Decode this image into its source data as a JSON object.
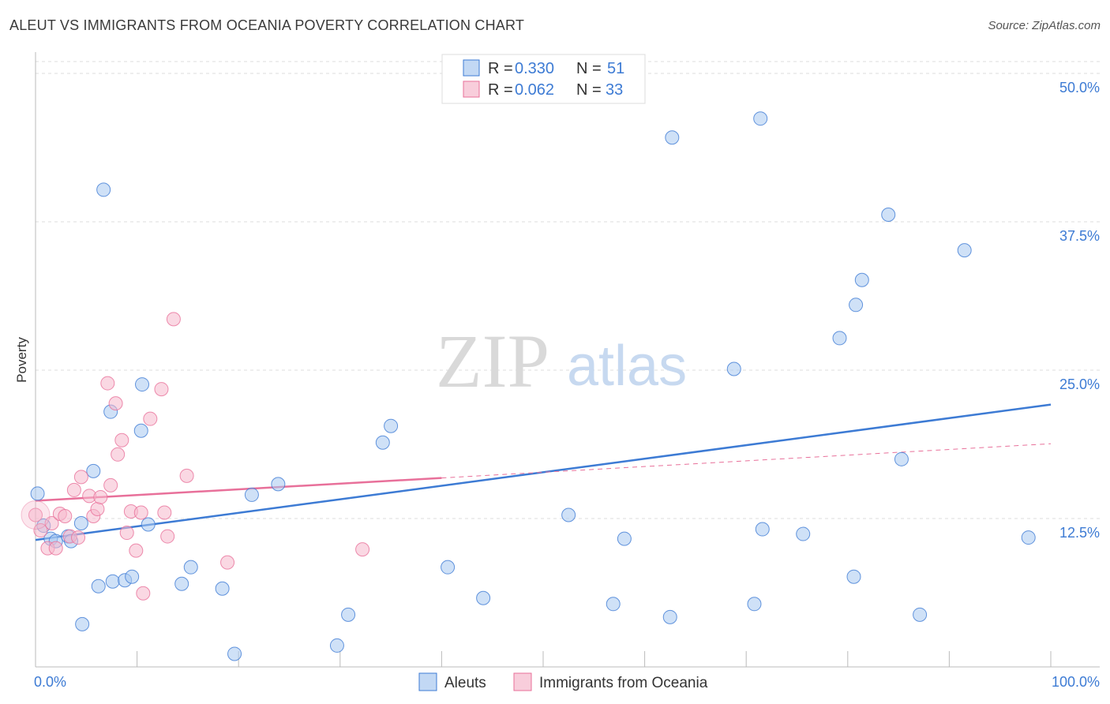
{
  "header": {
    "title": "ALEUT VS IMMIGRANTS FROM OCEANIA POVERTY CORRELATION CHART",
    "source": "Source: ZipAtlas.com"
  },
  "watermark": {
    "zip": "ZIP",
    "atlas": "atlas"
  },
  "colors": {
    "blue": "#3d7bd4",
    "blue_fill": "#a8c8f0",
    "pink": "#e8709a",
    "pink_fill": "#f5b8cc",
    "grid": "#dddddd"
  },
  "legend": {
    "rows": [
      {
        "r_label": "R =",
        "r_value": "0.330",
        "n_label": "N =",
        "n_value": "51"
      },
      {
        "r_label": "R =",
        "r_value": "0.062",
        "n_label": "N =",
        "n_value": "33"
      }
    ]
  },
  "chart_data": {
    "type": "scatter",
    "title": "ALEUT VS IMMIGRANTS FROM OCEANIA POVERTY CORRELATION CHART",
    "xlabel": "",
    "ylabel": "Poverty",
    "xlim": [
      0,
      100
    ],
    "ylim": [
      0,
      51
    ],
    "x_tick_labels": [
      "0.0%",
      "100.0%"
    ],
    "y_ticks": [
      12.5,
      25.0,
      37.5,
      50.0
    ],
    "y_tick_labels": [
      "12.5%",
      "25.0%",
      "37.5%",
      "50.0%"
    ],
    "series": [
      {
        "name": "Aleuts",
        "r": 0.33,
        "n": 51,
        "trend": {
          "x": [
            0,
            100
          ],
          "y": [
            10.7,
            22.1
          ],
          "dashed_from": null
        },
        "points": [
          [
            0.2,
            14.6
          ],
          [
            0.8,
            11.9
          ],
          [
            1.5,
            10.8
          ],
          [
            2.0,
            10.6
          ],
          [
            3.2,
            11.0
          ],
          [
            3.5,
            10.6
          ],
          [
            4.5,
            12.1
          ],
          [
            5.7,
            16.5
          ],
          [
            6.7,
            40.2
          ],
          [
            7.4,
            21.5
          ],
          [
            10.4,
            19.9
          ],
          [
            10.5,
            23.8
          ],
          [
            7.6,
            7.2
          ],
          [
            8.8,
            7.3
          ],
          [
            9.5,
            7.6
          ],
          [
            11.1,
            12.0
          ],
          [
            6.2,
            6.8
          ],
          [
            4.6,
            3.6
          ],
          [
            14.4,
            7.0
          ],
          [
            15.3,
            8.4
          ],
          [
            18.4,
            6.6
          ],
          [
            19.6,
            1.1
          ],
          [
            21.3,
            14.5
          ],
          [
            23.9,
            15.4
          ],
          [
            29.7,
            1.8
          ],
          [
            30.8,
            4.4
          ],
          [
            34.2,
            18.9
          ],
          [
            35.0,
            20.3
          ],
          [
            40.6,
            8.4
          ],
          [
            44.1,
            5.8
          ],
          [
            52.5,
            12.8
          ],
          [
            56.9,
            5.3
          ],
          [
            58.0,
            10.8
          ],
          [
            62.5,
            4.2
          ],
          [
            62.7,
            44.6
          ],
          [
            68.8,
            25.1
          ],
          [
            70.8,
            5.3
          ],
          [
            71.4,
            46.2
          ],
          [
            71.6,
            11.6
          ],
          [
            75.6,
            11.2
          ],
          [
            79.2,
            27.7
          ],
          [
            80.6,
            7.6
          ],
          [
            80.8,
            30.5
          ],
          [
            81.4,
            32.6
          ],
          [
            84.0,
            38.1
          ],
          [
            85.3,
            17.5
          ],
          [
            87.1,
            4.4
          ],
          [
            91.5,
            35.1
          ],
          [
            97.8,
            10.9
          ]
        ]
      },
      {
        "name": "Immigrants from Oceania",
        "r": 0.062,
        "n": 33,
        "trend": {
          "x": [
            0,
            100
          ],
          "y": [
            14.0,
            18.8
          ],
          "dashed_from": 40
        },
        "points": [
          [
            0.0,
            12.8
          ],
          [
            0.5,
            11.5
          ],
          [
            1.2,
            10.0
          ],
          [
            1.6,
            12.1
          ],
          [
            2.0,
            10.0
          ],
          [
            2.4,
            12.9
          ],
          [
            2.9,
            12.7
          ],
          [
            3.4,
            11.0
          ],
          [
            3.8,
            14.9
          ],
          [
            4.2,
            10.9
          ],
          [
            4.5,
            16.0
          ],
          [
            5.3,
            14.4
          ],
          [
            5.7,
            12.7
          ],
          [
            6.1,
            13.3
          ],
          [
            6.4,
            14.3
          ],
          [
            7.1,
            23.9
          ],
          [
            7.4,
            15.3
          ],
          [
            7.9,
            22.2
          ],
          [
            8.1,
            17.9
          ],
          [
            8.5,
            19.1
          ],
          [
            9.0,
            11.3
          ],
          [
            9.4,
            13.1
          ],
          [
            9.9,
            9.8
          ],
          [
            10.4,
            13.0
          ],
          [
            10.6,
            6.2
          ],
          [
            11.3,
            20.9
          ],
          [
            12.4,
            23.4
          ],
          [
            12.7,
            13.0
          ],
          [
            13.0,
            11.0
          ],
          [
            13.6,
            29.3
          ],
          [
            14.9,
            16.1
          ],
          [
            18.9,
            8.8
          ],
          [
            32.2,
            9.9
          ]
        ]
      }
    ]
  },
  "bottom_legend": {
    "items": [
      "Aleuts",
      "Immigrants from Oceania"
    ]
  }
}
